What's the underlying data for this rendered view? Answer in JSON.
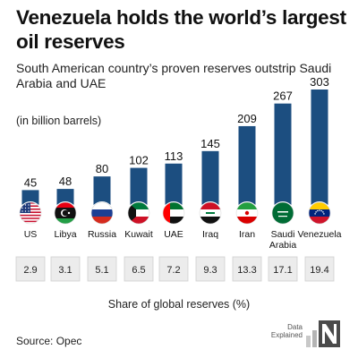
{
  "title": "Venezuela holds the world’s largest oil reserves",
  "subtitle": "South American country’s proven reserves outstrip Saudi Arabia and UAE",
  "unit_label": "(in billion barrels)",
  "share_label": "Share of global reserves (%)",
  "source": "Source: Opec",
  "logo_text": "Data Explained",
  "colors": {
    "bar": "#1c4e80",
    "share_box": "#ececec",
    "share_border": "#cfcfcf"
  },
  "chart_data": {
    "type": "bar",
    "categories": [
      "US",
      "Libya",
      "Russia",
      "Kuwait",
      "UAE",
      "Iraq",
      "Iran",
      "Saudi Arabia",
      "Venezuela"
    ],
    "category_lines": [
      [
        "US"
      ],
      [
        "Libya"
      ],
      [
        "Russia"
      ],
      [
        "Kuwait"
      ],
      [
        "UAE"
      ],
      [
        "Iraq"
      ],
      [
        "Iran"
      ],
      [
        "Saudi",
        "Arabia"
      ],
      [
        "Venezuela"
      ]
    ],
    "series": [
      {
        "values": [
          45,
          48,
          80,
          102,
          113,
          145,
          209,
          267,
          303
        ]
      },
      {
        "values": [
          2.9,
          3.1,
          5.1,
          6.5,
          7.2,
          9.3,
          13.3,
          17.1,
          19.4
        ]
      }
    ],
    "value_labels": [
      "45",
      "48",
      "80",
      "102",
      "113",
      "145",
      "209",
      "267",
      "303"
    ],
    "share_labels": [
      "2.9",
      "3.1",
      "5.1",
      "6.5",
      "7.2",
      "9.3",
      "13.3",
      "17.1",
      "19.4"
    ],
    "flag_icons": [
      "us-flag-icon",
      "libya-flag-icon",
      "russia-flag-icon",
      "kuwait-flag-icon",
      "uae-flag-icon",
      "iraq-flag-icon",
      "iran-flag-icon",
      "saudi-arabia-flag-icon",
      "venezuela-flag-icon"
    ],
    "ylim": [
      0,
      303
    ],
    "grid": false,
    "legend": "none"
  }
}
